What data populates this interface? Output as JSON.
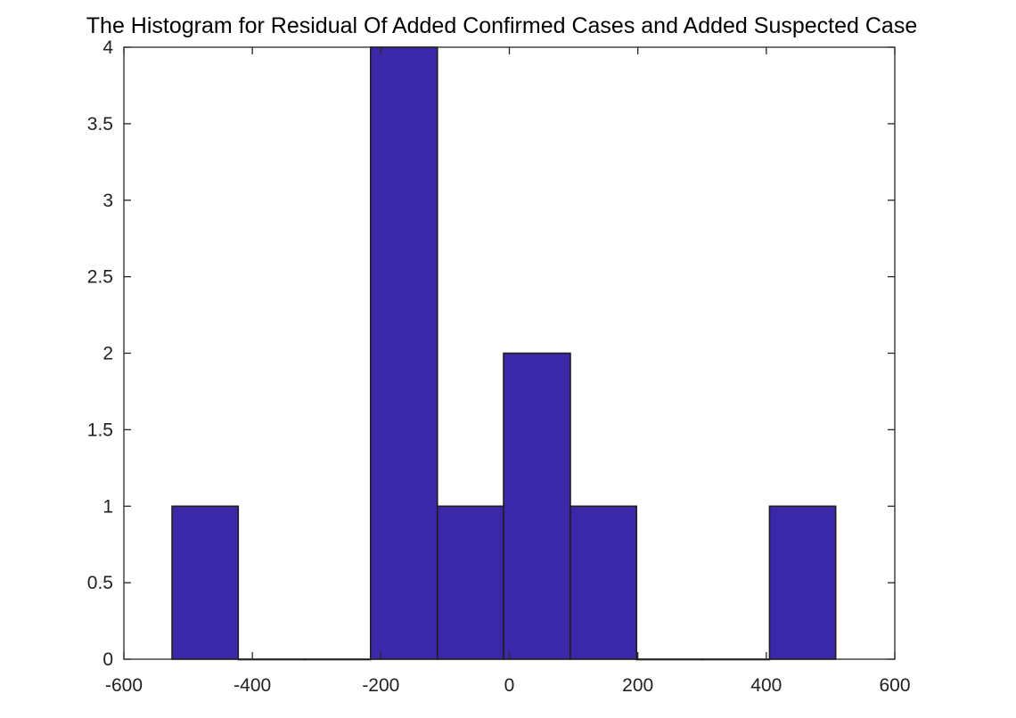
{
  "chart_data": {
    "type": "histogram",
    "title": "The Histogram for Residual Of Added Confirmed Cases and Added Suspected Case",
    "xlabel": "",
    "ylabel": "",
    "xlim": [
      -600,
      600
    ],
    "ylim": [
      0,
      4
    ],
    "xticks": [
      "-600",
      "-400",
      "-200",
      "0",
      "200",
      "400",
      "600"
    ],
    "yticks": [
      "0",
      "0.5",
      "1",
      "1.5",
      "2",
      "2.5",
      "3",
      "3.5",
      "4"
    ],
    "bins": [
      {
        "x0": -525,
        "x1": -422,
        "count": 1
      },
      {
        "x0": -422,
        "x1": -319,
        "count": 0
      },
      {
        "x0": -319,
        "x1": -216,
        "count": 0
      },
      {
        "x0": -216,
        "x1": -112,
        "count": 4
      },
      {
        "x0": -112,
        "x1": -9,
        "count": 1
      },
      {
        "x0": -9,
        "x1": 95,
        "count": 2
      },
      {
        "x0": 95,
        "x1": 198,
        "count": 1
      },
      {
        "x0": 198,
        "x1": 301,
        "count": 0
      },
      {
        "x0": 301,
        "x1": 405,
        "count": 0
      },
      {
        "x0": 405,
        "x1": 508,
        "count": 1
      }
    ],
    "grid": false,
    "colors": {
      "bar": "#3b28a8",
      "edge": "#1e1e1e",
      "axis": "#262626"
    }
  }
}
